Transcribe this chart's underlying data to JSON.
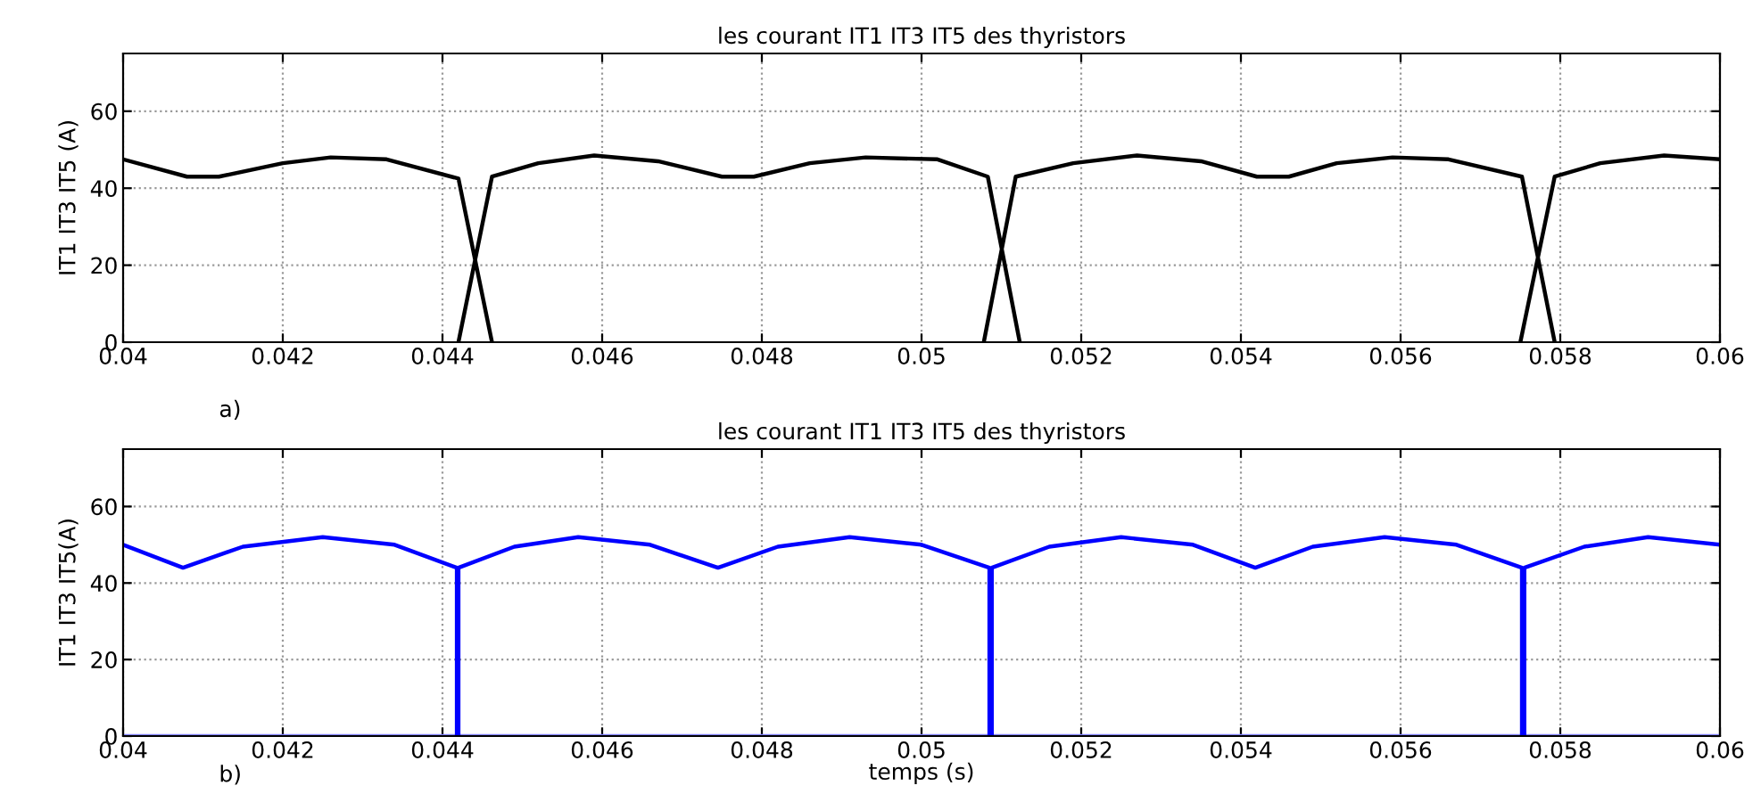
{
  "chart_data": [
    {
      "type": "line",
      "title": "les courant IT1 IT3 IT5 des thyristors",
      "ylabel": "IT1 IT3 IT5 (A)",
      "annotations": [
        "a)"
      ],
      "xlim": [
        0.04,
        0.06
      ],
      "ylim": [
        0,
        75
      ],
      "xticks": [
        0.04,
        0.042,
        0.044,
        0.046,
        0.048,
        0.05,
        0.052,
        0.054,
        0.056,
        0.058,
        0.06
      ],
      "yticks": [
        0,
        20,
        40,
        60
      ],
      "grid": true,
      "line_style": "solid",
      "series": [
        {
          "color": "#000000",
          "x": [
            0.04,
            0.0408,
            0.0412,
            0.042,
            0.0426,
            0.0433,
            0.0442,
            0.04462,
            null,
            0.0442,
            0.04462,
            0.0452,
            0.0459,
            0.0467,
            0.0475,
            0.0479,
            0.0486,
            0.0493,
            0.0502,
            0.05083,
            0.05123,
            null,
            0.05078,
            0.05118,
            0.0519,
            0.0527,
            0.0535,
            0.0542,
            0.0546,
            0.0552,
            0.0559,
            0.0566,
            0.05752,
            0.05793,
            null,
            0.0575,
            0.05793,
            0.0585,
            0.0593,
            0.06
          ],
          "values": [
            47.5,
            43,
            43,
            46.5,
            48,
            47.5,
            42.5,
            0,
            null,
            0,
            43,
            46.5,
            48.5,
            47,
            43,
            43,
            46.5,
            48,
            47.5,
            43,
            0,
            null,
            0,
            43,
            46.5,
            48.5,
            47,
            43,
            43,
            46.5,
            48,
            47.5,
            43,
            0,
            null,
            0,
            43,
            46.5,
            48.5,
            47.5
          ]
        }
      ]
    },
    {
      "type": "line",
      "title": "les courant IT1 IT3 IT5 des thyristors",
      "xlabel": "temps (s)",
      "ylabel": "IT1 IT3 IT5(A)",
      "annotations": [
        "b)"
      ],
      "xlim": [
        0.04,
        0.06
      ],
      "ylim": [
        0,
        75
      ],
      "xticks": [
        0.04,
        0.042,
        0.044,
        0.046,
        0.048,
        0.05,
        0.052,
        0.054,
        0.056,
        0.058,
        0.06
      ],
      "yticks": [
        0,
        20,
        40,
        60
      ],
      "grid": true,
      "line_style": "solid",
      "series": [
        {
          "color": "#8080ff",
          "x": [
            0.04,
            0.06
          ],
          "values": [
            0,
            0
          ]
        },
        {
          "color": "#0000ff",
          "x": [
            0.04,
            0.04075,
            0.0415,
            0.0425,
            0.0434,
            0.04418,
            0.04418,
            0.0442,
            0.0442,
            0.0449,
            0.0457,
            0.0466,
            0.04745,
            0.0482,
            0.0491,
            0.05,
            0.05085,
            0.05085,
            0.05088,
            0.05088,
            0.0516,
            0.0525,
            0.0534,
            0.05418,
            0.0549,
            0.0558,
            0.0567,
            0.05752,
            0.05752,
            0.05755,
            0.05755,
            0.0583,
            0.0591,
            0.06
          ],
          "values": [
            50,
            44,
            49.5,
            52,
            50,
            44,
            0,
            0,
            44,
            49.5,
            52,
            50,
            44,
            49.5,
            52,
            50,
            44,
            0,
            0,
            44,
            49.5,
            52,
            50,
            44,
            49.5,
            52,
            50,
            44,
            0,
            0,
            44,
            49.5,
            52,
            50
          ]
        }
      ]
    }
  ]
}
